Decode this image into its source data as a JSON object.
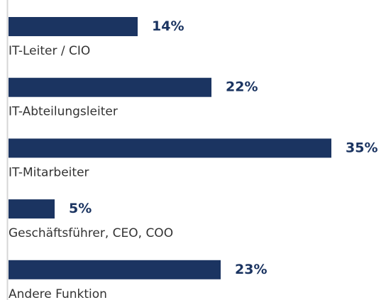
{
  "chart_data": {
    "type": "bar",
    "orientation": "horizontal",
    "categories": [
      "IT-Leiter / CIO",
      "IT-Abteilungsleiter",
      "IT-Mitarbeiter",
      "Geschäftsführer, CEO, COO",
      "Andere Funktion"
    ],
    "values": [
      14,
      22,
      35,
      5,
      23
    ],
    "value_labels": [
      "14%",
      "22%",
      "35%",
      "5%",
      "23%"
    ],
    "color": "#1b3461"
  }
}
